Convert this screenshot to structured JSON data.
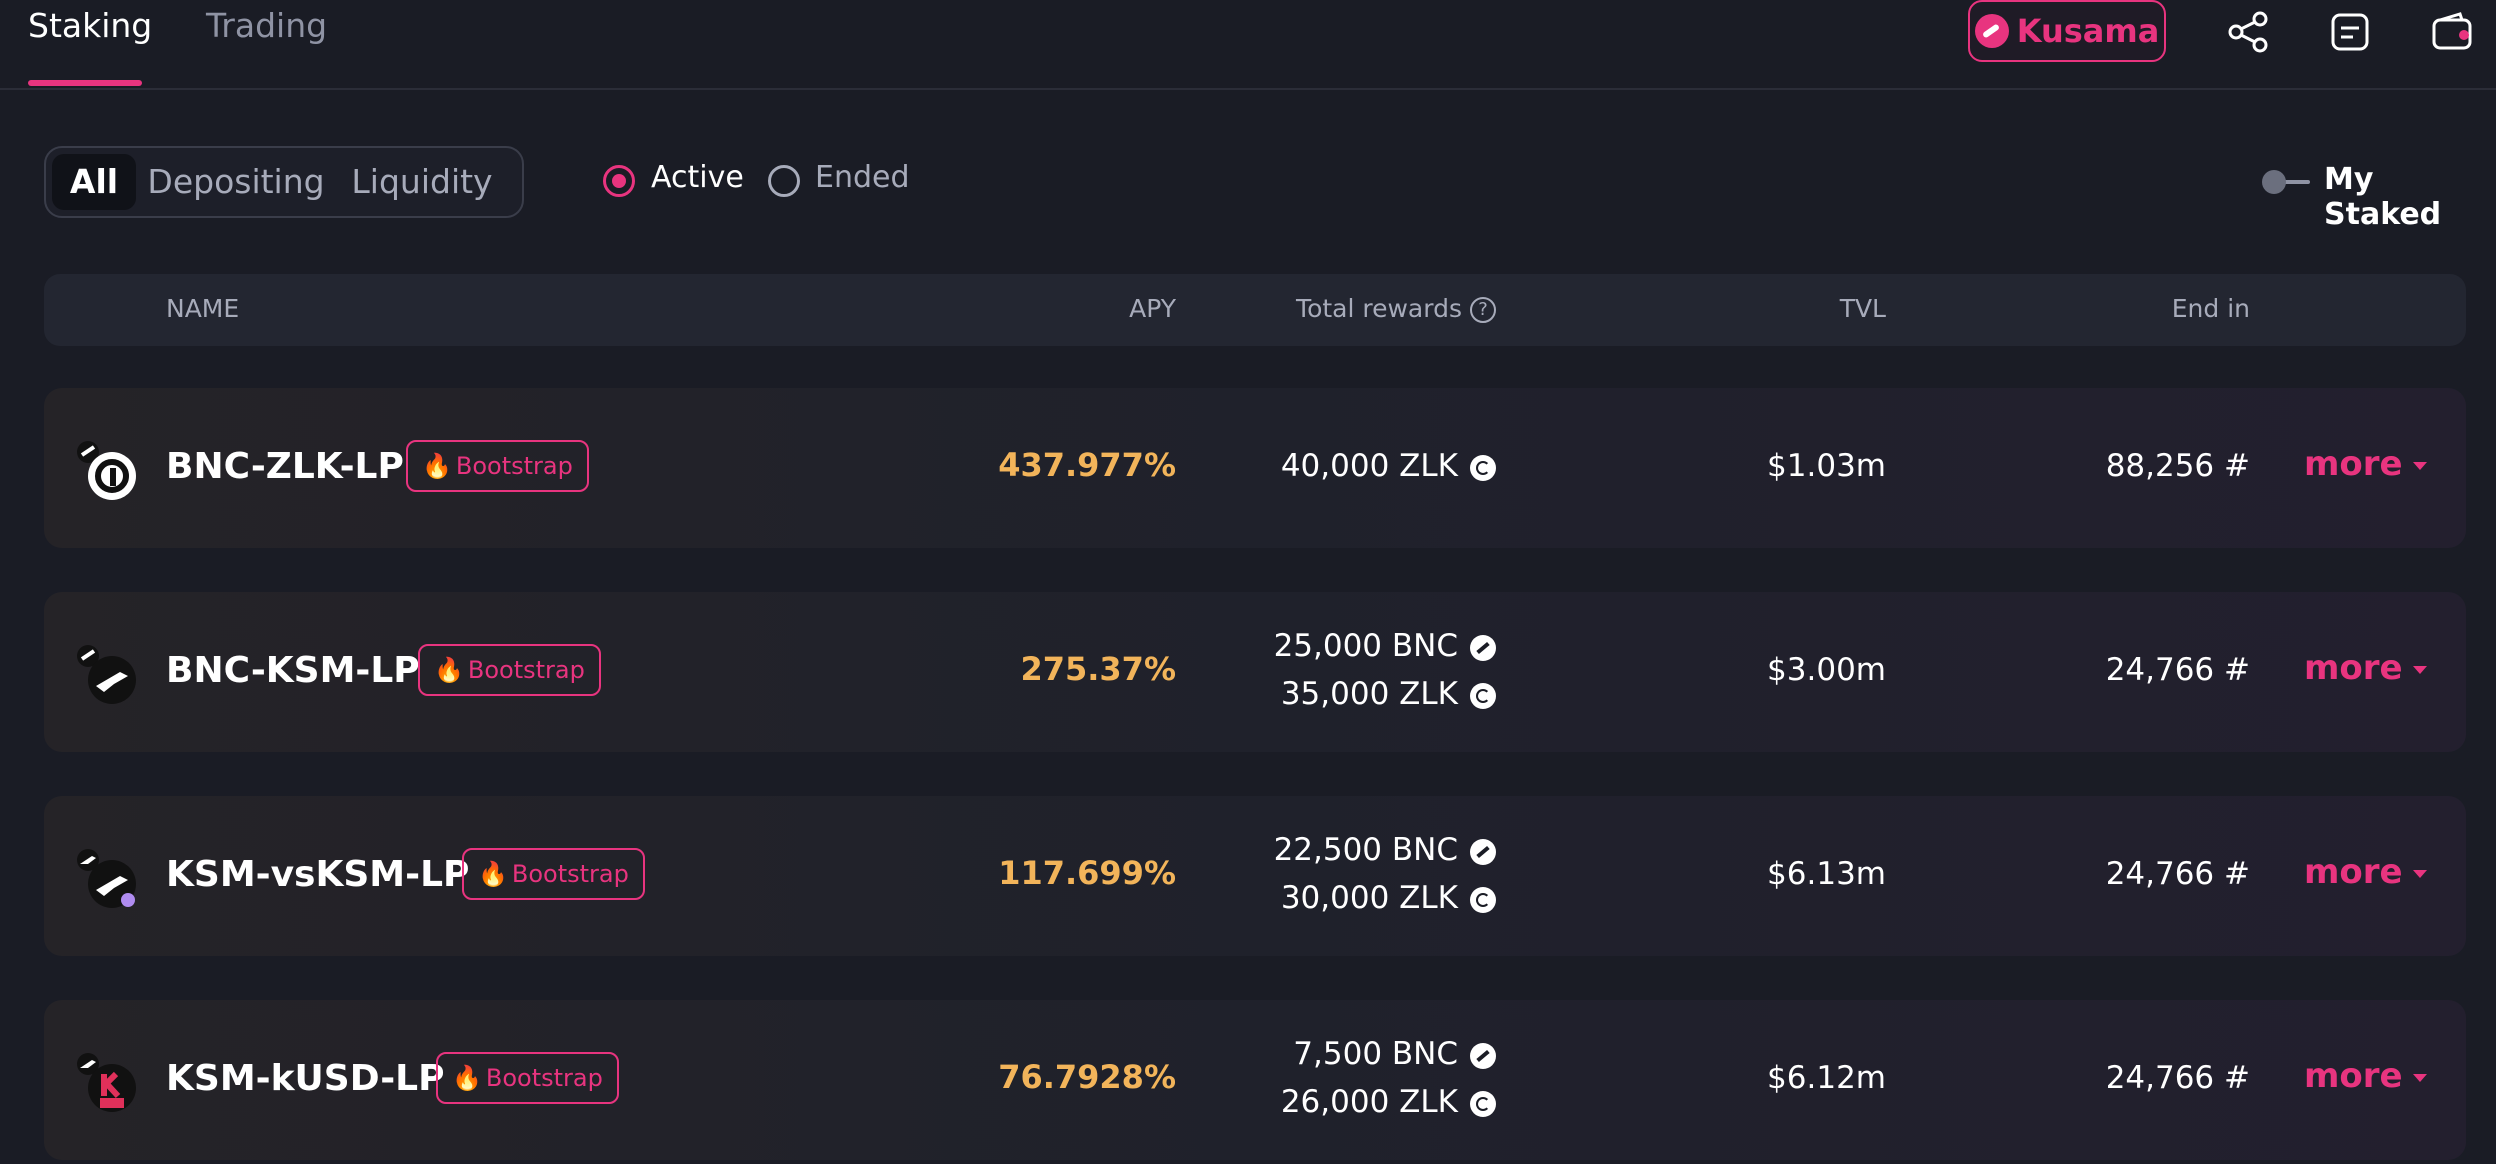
{
  "header": {
    "tabs": [
      {
        "label": "Staking",
        "active": true
      },
      {
        "label": "Trading",
        "active": false
      }
    ],
    "network": {
      "label": "Kusama",
      "icon": "kusama-icon"
    },
    "icons": [
      "share-icon",
      "document-icon",
      "wallet-icon"
    ]
  },
  "filters": {
    "segments": [
      {
        "label": "All",
        "active": true
      },
      {
        "label": "Depositing",
        "active": false
      },
      {
        "label": "Liquidity",
        "active": false
      }
    ],
    "status": [
      {
        "label": "Active",
        "selected": true
      },
      {
        "label": "Ended",
        "selected": false
      }
    ],
    "my_staked": {
      "label": "My Staked",
      "on": false
    }
  },
  "table": {
    "headers": {
      "name": "NAME",
      "apy": "APY",
      "rewards": "Total rewards",
      "tvl": "TVL",
      "end": "End in"
    },
    "rows": [
      {
        "name": "BNC-ZLK-LP",
        "badge": "Bootstrap",
        "apy": "437.977%",
        "rewards": [
          {
            "amount": "40,000 ZLK",
            "token": "zlk"
          }
        ],
        "tvl": "$1.03m",
        "end_in": "88,256 #",
        "more": "more"
      },
      {
        "name": "BNC-KSM-LP",
        "badge": "Bootstrap",
        "apy": "275.37%",
        "rewards": [
          {
            "amount": "25,000 BNC",
            "token": "bnc"
          },
          {
            "amount": "35,000 ZLK",
            "token": "zlk"
          }
        ],
        "tvl": "$3.00m",
        "end_in": "24,766 #",
        "more": "more"
      },
      {
        "name": "KSM-vsKSM-LP",
        "badge": "Bootstrap",
        "apy": "117.699%",
        "rewards": [
          {
            "amount": "22,500 BNC",
            "token": "bnc"
          },
          {
            "amount": "30,000 ZLK",
            "token": "zlk"
          }
        ],
        "tvl": "$6.13m",
        "end_in": "24,766 #",
        "more": "more"
      },
      {
        "name": "KSM-kUSD-LP",
        "badge": "Bootstrap",
        "apy": "76.7928%",
        "rewards": [
          {
            "amount": "7,500 BNC",
            "token": "bnc"
          },
          {
            "amount": "26,000 ZLK",
            "token": "zlk"
          }
        ],
        "tvl": "$6.12m",
        "end_in": "24,766 #",
        "more": "more"
      }
    ]
  },
  "colors": {
    "accent": "#e8347f",
    "apy": "#f2b45a",
    "background": "#1a1c25"
  }
}
